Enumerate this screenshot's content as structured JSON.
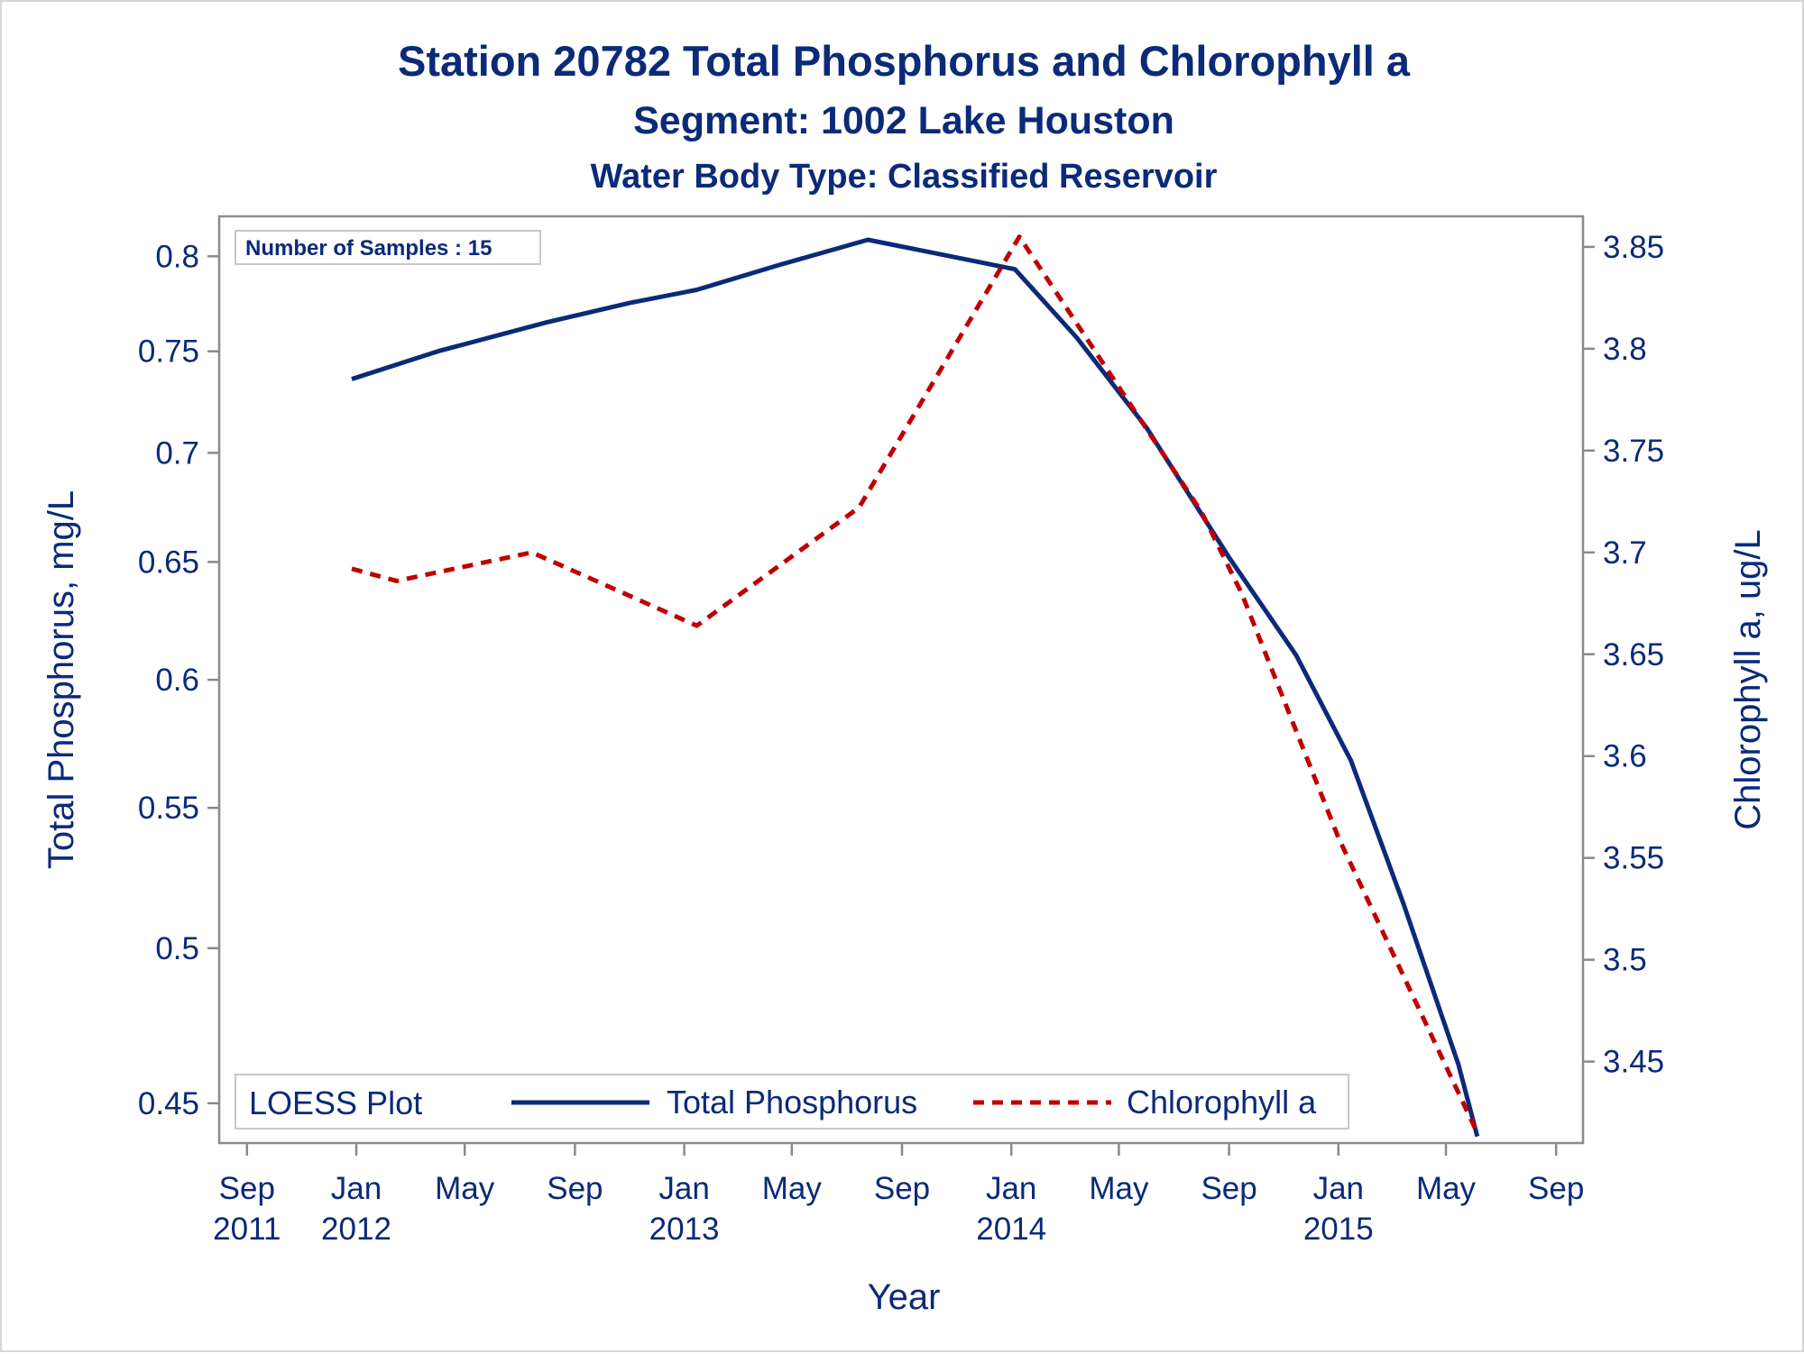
{
  "chart_data": {
    "type": "line",
    "title": "Station 20782   Total Phosphorus and Chlorophyll a",
    "subtitle": "Segment: 1002  Lake Houston",
    "subtitle2": "Water Body Type: Classified Reservoir",
    "xlabel": "Year",
    "ylabel_left": "Total Phosphorus, mg/L",
    "ylabel_right": "Chlorophyll a, ug/L",
    "inset_label": "Number of Samples : 15",
    "legend": {
      "title": "LOESS Plot",
      "placement": "bottom-left"
    },
    "x_ticks": [
      {
        "date": "2011-09-01",
        "line1": "Sep",
        "line2": "2011"
      },
      {
        "date": "2012-01-01",
        "line1": "Jan",
        "line2": "2012"
      },
      {
        "date": "2012-05-01",
        "line1": "May",
        "line2": ""
      },
      {
        "date": "2012-09-01",
        "line1": "Sep",
        "line2": ""
      },
      {
        "date": "2013-01-01",
        "line1": "Jan",
        "line2": "2013"
      },
      {
        "date": "2013-05-01",
        "line1": "May",
        "line2": ""
      },
      {
        "date": "2013-09-01",
        "line1": "Sep",
        "line2": ""
      },
      {
        "date": "2014-01-01",
        "line1": "Jan",
        "line2": "2014"
      },
      {
        "date": "2014-05-01",
        "line1": "May",
        "line2": ""
      },
      {
        "date": "2014-09-01",
        "line1": "Sep",
        "line2": ""
      },
      {
        "date": "2015-01-01",
        "line1": "Jan",
        "line2": "2015"
      },
      {
        "date": "2015-05-01",
        "line1": "May",
        "line2": ""
      },
      {
        "date": "2015-09-01",
        "line1": "Sep",
        "line2": ""
      }
    ],
    "xlim": [
      "2011-08-01",
      "2015-10-01"
    ],
    "y_left": {
      "scale": "log",
      "lim": [
        0.438,
        0.822
      ],
      "ticks": [
        0.45,
        0.5,
        0.55,
        0.6,
        0.65,
        0.7,
        0.75,
        0.8
      ],
      "tick_labels": [
        "0.45",
        "0.5",
        "0.55",
        "0.6",
        "0.65",
        "0.7",
        "0.75",
        "0.8"
      ]
    },
    "y_right": {
      "scale": "linear",
      "lim": [
        3.41,
        3.865
      ],
      "ticks": [
        3.45,
        3.5,
        3.55,
        3.6,
        3.65,
        3.7,
        3.75,
        3.8,
        3.85
      ],
      "tick_labels": [
        "3.45",
        "3.5",
        "3.55",
        "3.6",
        "3.65",
        "3.7",
        "3.75",
        "3.8",
        "3.85"
      ]
    },
    "series": [
      {
        "name": "Total Phosphorus",
        "axis": "left",
        "color": "#0b2a78",
        "style": "solid",
        "points": [
          [
            "2011-12-27",
            0.736
          ],
          [
            "2012-04-01",
            0.75
          ],
          [
            "2012-08-01",
            0.765
          ],
          [
            "2012-11-01",
            0.775
          ],
          [
            "2013-01-15",
            0.782
          ],
          [
            "2013-04-15",
            0.795
          ],
          [
            "2013-07-25",
            0.809
          ],
          [
            "2013-10-15",
            0.801
          ],
          [
            "2014-01-05",
            0.793
          ],
          [
            "2014-03-15",
            0.757
          ],
          [
            "2014-06-01",
            0.712
          ],
          [
            "2014-09-01",
            0.652
          ],
          [
            "2014-11-15",
            0.61
          ],
          [
            "2015-01-15",
            0.568
          ],
          [
            "2015-03-15",
            0.515
          ],
          [
            "2015-05-15",
            0.462
          ],
          [
            "2015-06-05",
            0.44
          ]
        ]
      },
      {
        "name": "Chlorophyll a",
        "axis": "right",
        "color": "#c00000",
        "style": "dashed",
        "points": [
          [
            "2011-12-27",
            3.692
          ],
          [
            "2012-02-15",
            3.686
          ],
          [
            "2012-07-15",
            3.7
          ],
          [
            "2013-01-15",
            3.664
          ],
          [
            "2013-07-15",
            3.722
          ],
          [
            "2014-01-10",
            3.855
          ],
          [
            "2014-08-01",
            3.72
          ],
          [
            "2014-09-15",
            3.68
          ],
          [
            "2015-01-01",
            3.56
          ],
          [
            "2015-06-05",
            3.415
          ]
        ]
      }
    ]
  }
}
